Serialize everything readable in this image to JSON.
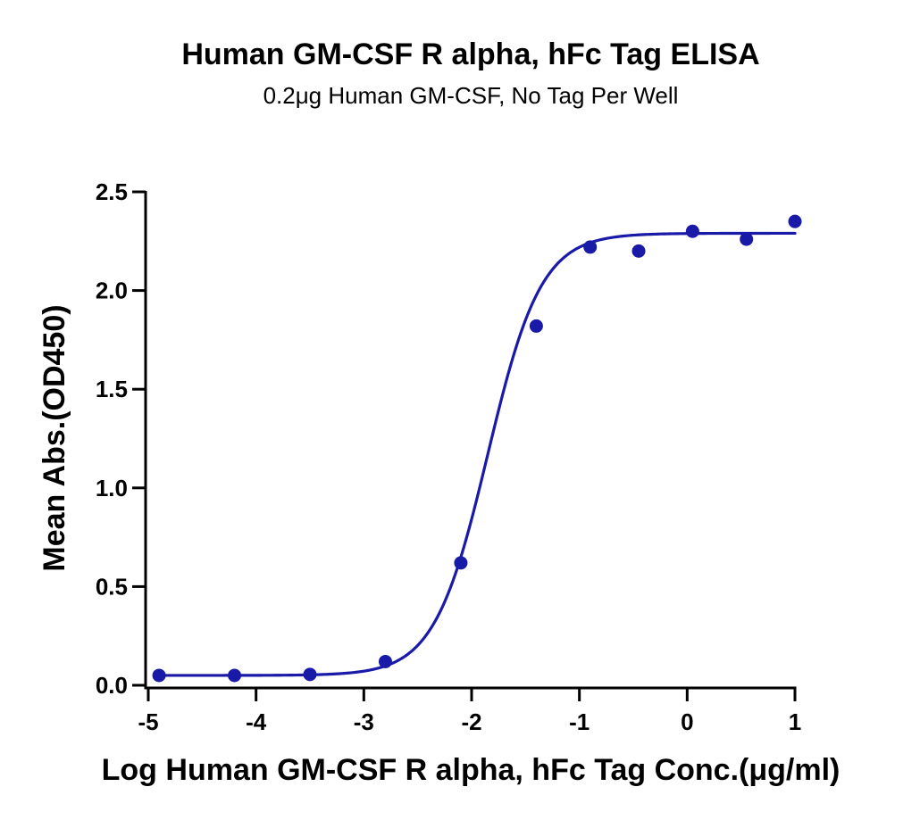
{
  "chart_data": {
    "type": "scatter",
    "title": "Human GM-CSF R alpha, hFc Tag ELISA",
    "subtitle": "0.2μg Human GM-CSF, No Tag Per Well",
    "xlabel": "Log Human GM-CSF R alpha, hFc Tag Conc.(μg/ml)",
    "ylabel": "Mean Abs.(OD450)",
    "xlim": [
      -5,
      1
    ],
    "ylim": [
      0,
      2.5
    ],
    "x_ticks": [
      "-5",
      "-4",
      "-3",
      "-2",
      "-1",
      "0",
      "1"
    ],
    "y_ticks": [
      "0.0",
      "0.5",
      "1.0",
      "1.5",
      "2.0",
      "2.5"
    ],
    "grid": false,
    "legend": "none",
    "series": [
      {
        "color": "#1a1aa8",
        "points": [
          {
            "x": -4.9,
            "y": 0.05
          },
          {
            "x": -4.2,
            "y": 0.05
          },
          {
            "x": -3.5,
            "y": 0.055
          },
          {
            "x": -2.8,
            "y": 0.12
          },
          {
            "x": -2.1,
            "y": 0.62
          },
          {
            "x": -1.4,
            "y": 1.82
          },
          {
            "x": -0.9,
            "y": 2.22
          },
          {
            "x": -0.45,
            "y": 2.2
          },
          {
            "x": 0.05,
            "y": 2.3
          },
          {
            "x": 0.55,
            "y": 2.26
          },
          {
            "x": 1.0,
            "y": 2.35
          }
        ],
        "fit": {
          "type": "sigmoidal",
          "bottom": 0.05,
          "top": 2.29,
          "logEC50": -1.85,
          "hill_slope": 1.75
        }
      }
    ]
  }
}
